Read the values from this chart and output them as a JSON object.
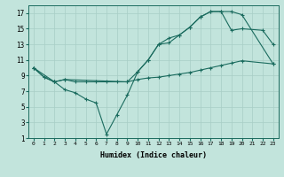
{
  "bg_color": "#c2e4dc",
  "line_color": "#1a6b5e",
  "grid_color": "#a8cec6",
  "xlabel": "Humidex (Indice chaleur)",
  "xlim": [
    -0.5,
    23.5
  ],
  "ylim": [
    1,
    18
  ],
  "xticks": [
    0,
    1,
    2,
    3,
    4,
    5,
    6,
    7,
    8,
    9,
    10,
    11,
    12,
    13,
    14,
    15,
    16,
    17,
    18,
    19,
    20,
    21,
    22,
    23
  ],
  "yticks": [
    1,
    3,
    5,
    7,
    9,
    11,
    13,
    15,
    17
  ],
  "line1": {
    "x": [
      0,
      1,
      2,
      3,
      4,
      5,
      6,
      7,
      8,
      9,
      10,
      11,
      12,
      13,
      14,
      15,
      16,
      17,
      18,
      19,
      20,
      23
    ],
    "y": [
      10.0,
      8.8,
      8.2,
      8.5,
      8.2,
      8.2,
      8.2,
      8.2,
      8.2,
      8.2,
      8.5,
      8.7,
      8.8,
      9.0,
      9.2,
      9.4,
      9.7,
      10.0,
      10.3,
      10.6,
      10.9,
      10.5
    ]
  },
  "line2": {
    "x": [
      0,
      1,
      2,
      3,
      4,
      5,
      6,
      7,
      8,
      9,
      10,
      11,
      12,
      13,
      14,
      15,
      16,
      17,
      18,
      19,
      20,
      22,
      23
    ],
    "y": [
      10.0,
      8.8,
      8.2,
      7.2,
      6.8,
      6.0,
      5.5,
      1.5,
      4.0,
      6.5,
      9.5,
      11.0,
      13.0,
      13.2,
      14.2,
      15.2,
      16.5,
      17.2,
      17.2,
      14.8,
      15.0,
      14.8,
      13.0
    ]
  },
  "line3": {
    "x": [
      0,
      2,
      3,
      9,
      10,
      11,
      12,
      13,
      14,
      15,
      16,
      17,
      18,
      19,
      20,
      23
    ],
    "y": [
      10.0,
      8.2,
      8.5,
      8.2,
      9.5,
      11.0,
      13.0,
      13.8,
      14.2,
      15.2,
      16.5,
      17.2,
      17.2,
      17.2,
      16.8,
      10.5
    ]
  }
}
